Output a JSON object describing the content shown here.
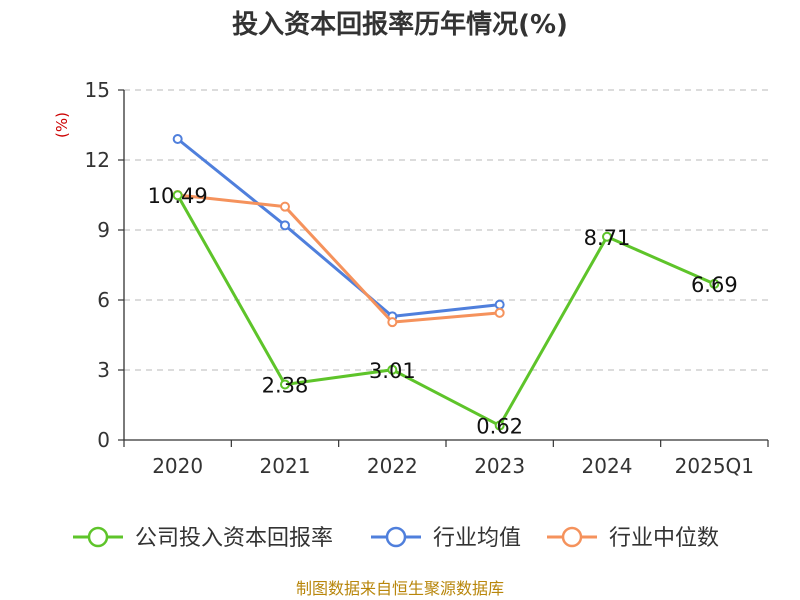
{
  "chart_data": {
    "type": "line",
    "title": "投入资本回报率历年情况(%)",
    "ylabel": "(%)",
    "categories": [
      "2020",
      "2021",
      "2022",
      "2023",
      "2024",
      "2025Q1"
    ],
    "ylim": [
      0,
      15
    ],
    "yticks": [
      "0",
      "3",
      "6",
      "9",
      "12",
      "15"
    ],
    "grid": true,
    "legend": "bottom",
    "series": [
      {
        "name": "公司投入资本回报率",
        "color": "#5ec42a",
        "values": [
          10.49,
          2.38,
          3.01,
          0.62,
          8.71,
          6.69
        ],
        "labels": [
          "10.49",
          "2.38",
          "3.01",
          "0.62",
          "8.71",
          "6.69"
        ]
      },
      {
        "name": "行业均值",
        "color": "#4f7fdc",
        "values": [
          12.9,
          9.2,
          5.3,
          5.8,
          null,
          null
        ]
      },
      {
        "name": "行业中位数",
        "color": "#f5925c",
        "values": [
          10.5,
          10.0,
          5.05,
          5.45,
          null,
          null
        ]
      }
    ]
  },
  "footer": {
    "source": "制图数据来自恒生聚源数据库"
  }
}
